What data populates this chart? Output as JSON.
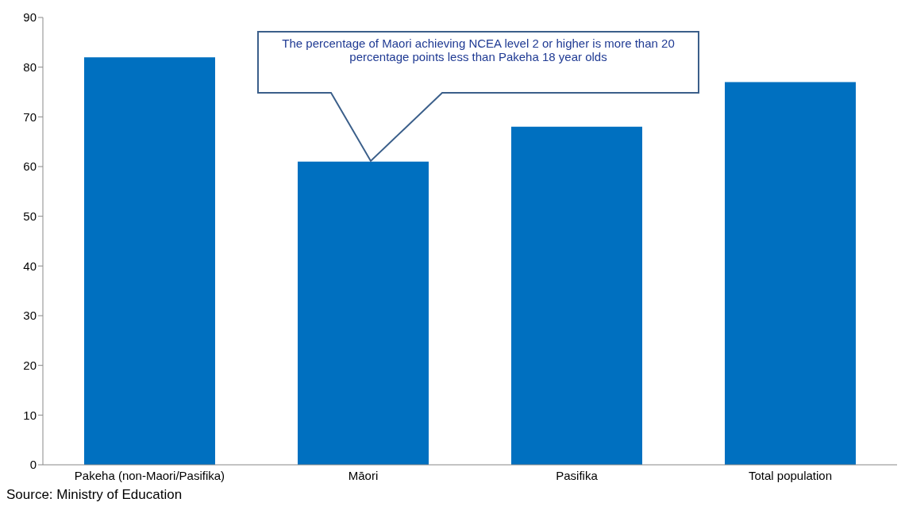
{
  "chart_data": {
    "type": "bar",
    "categories": [
      "Pakeha (non-Maori/Pasifika)",
      "Māori",
      "Pasifika",
      "Total population"
    ],
    "values": [
      82,
      61,
      68,
      77
    ],
    "color": "#0070c0",
    "ylim": [
      0,
      90
    ],
    "yticks": [
      0,
      10,
      20,
      30,
      40,
      50,
      60,
      70,
      80,
      90
    ],
    "grid": false,
    "legend": false,
    "annotations": [
      "The percentage of Maori achieving NCEA level 2 or higher is more than 20 percentage points less than Pakeha 18 year olds",
      "Source: Ministry of Education"
    ]
  }
}
